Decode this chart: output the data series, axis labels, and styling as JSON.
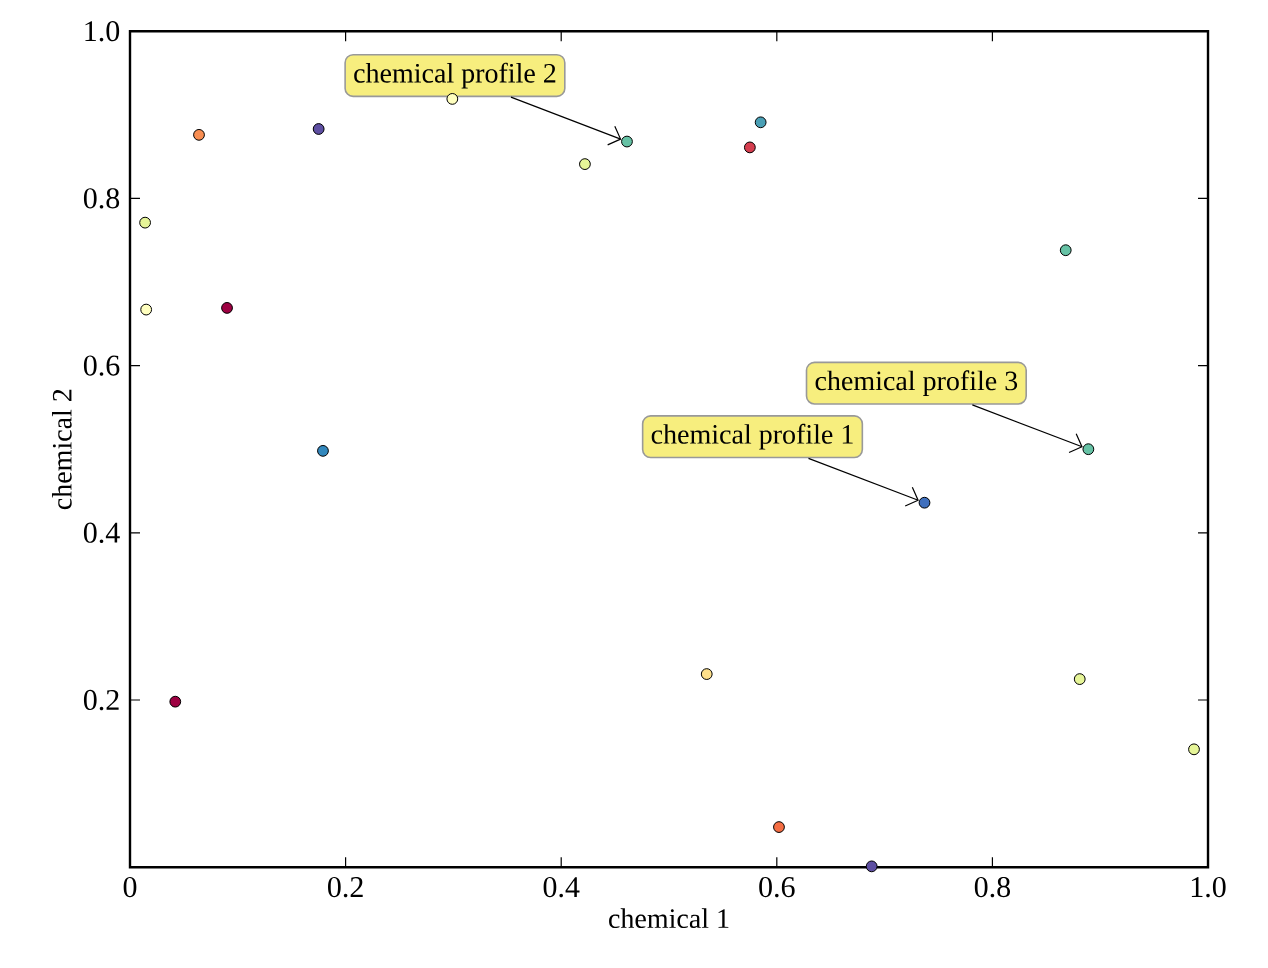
{
  "chart_data": {
    "type": "scatter",
    "xlabel": "chemical 1",
    "ylabel": "chemical 2",
    "x": [
      0.014,
      0.015,
      0.064,
      0.09,
      0.175,
      0.179,
      0.042,
      0.299,
      0.422,
      0.461,
      0.585,
      0.575,
      0.868,
      0.889,
      0.737,
      0.535,
      0.881,
      0.987,
      0.602,
      0.688
    ],
    "values": [
      0.771,
      0.667,
      0.876,
      0.669,
      0.883,
      0.498,
      0.198,
      0.919,
      0.841,
      0.868,
      0.891,
      0.861,
      0.738,
      0.5,
      0.436,
      0.231,
      0.225,
      0.141,
      0.048,
      0.001
    ],
    "colors": [
      "#e6f598",
      "#ffffbf",
      "#f98e52",
      "#9e0142",
      "#5e4fa2",
      "#3288bd",
      "#9e0142",
      "#ffffbf",
      "#e6f598",
      "#66c2a5",
      "#4a9fb5",
      "#d53e4f",
      "#66c2a5",
      "#66c2a5",
      "#3f6fbd",
      "#fee08b",
      "#e6f598",
      "#e6f598",
      "#f46d43",
      "#5e4fa2"
    ],
    "marker": "circle",
    "xlim": [
      0,
      1
    ],
    "ylim": [
      0,
      1
    ],
    "xticks": [
      0,
      0.2,
      0.4,
      0.6,
      0.8,
      {
        "value": 1,
        "label": "1.0"
      }
    ],
    "yticks": [
      0.2,
      0.4,
      0.6,
      0.8,
      {
        "value": 1,
        "label": "1.0"
      }
    ],
    "annotations": [
      {
        "text": "chemical profile 1",
        "x": 0.737,
        "y": 0.436
      },
      {
        "text": "chemical profile 2",
        "x": 0.461,
        "y": 0.868
      },
      {
        "text": "chemical profile 3",
        "x": 0.889,
        "y": 0.5
      }
    ]
  }
}
